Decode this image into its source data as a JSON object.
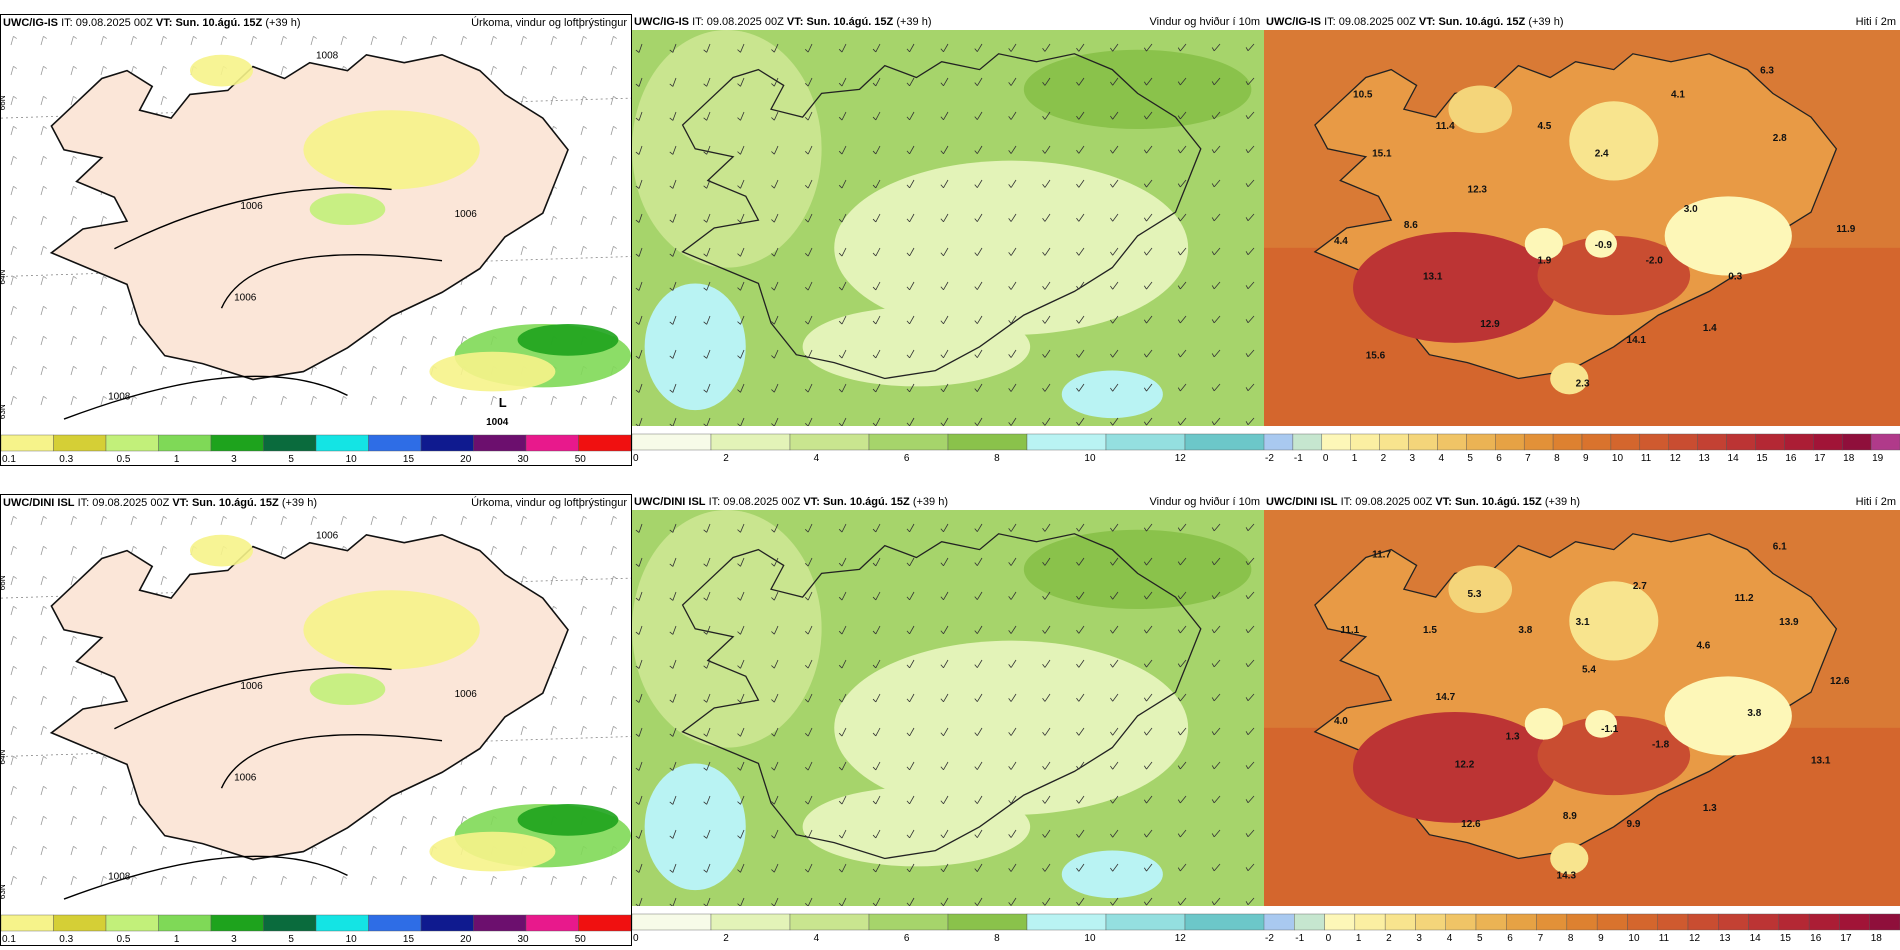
{
  "header": {
    "it_prefix": "IT:",
    "it_value": "09.08.2025 00Z",
    "vt_prefix": "VT:",
    "vt_value": "Sun. 10.ágú. 15Z",
    "lead": "(+39 h)"
  },
  "rows": [
    {
      "model": "UWC/IG-IS",
      "precip": {
        "title": "Úrkoma, vindur og loftþrýstingur",
        "isobar_labels": [
          "1008",
          "1006",
          "1006",
          "1006",
          "1008"
        ],
        "low_letter": "L",
        "low_value": "1004"
      },
      "wind": {
        "title": "Vindur og hviður í 10m"
      },
      "temp": {
        "title": "Hiti í 2m",
        "values": [
          "10.5",
          "11.4",
          "4.5",
          "4.1",
          "6.3",
          "2.8",
          "15.1",
          "12.3",
          "2.4",
          "3.0",
          "8.6",
          "4.4",
          "1.9",
          "-0.9",
          "-2.0",
          "0.3",
          "11.9",
          "13.1",
          "12.9",
          "1.4",
          "14.1",
          "15.6",
          "2.3"
        ]
      }
    },
    {
      "model": "UWC/DINI ISL",
      "precip": {
        "title": "Úrkoma, vindur og loftþrýstingur",
        "isobar_labels": [
          "1006",
          "1006",
          "1006",
          "1006",
          "1008"
        ],
        "low_letter": "",
        "low_value": ""
      },
      "wind": {
        "title": "Vindur og hviður í 10m"
      },
      "temp": {
        "title": "Hiti í 2m",
        "values": [
          "11.7",
          "6.1",
          "5.3",
          "2.7",
          "11.2",
          "13.9",
          "11.1",
          "1.5",
          "3.8",
          "3.1",
          "4.6",
          "5.4",
          "14.7",
          "12.6",
          "4.0",
          "1.3",
          "-1.1",
          "-1.8",
          "3.8",
          "12.2",
          "13.1",
          "8.9",
          "9.9",
          "1.3",
          "12.6",
          "14.3"
        ]
      }
    }
  ],
  "axis_labels": {
    "lat_66": "66N",
    "lat_64": "64N",
    "lat_63": "63N"
  },
  "colorbars": {
    "precip": {
      "labels": [
        "0.1",
        "0.3",
        "0.5",
        "1",
        "3",
        "5",
        "10",
        "15",
        "20",
        "30",
        "50"
      ],
      "colors": [
        "#f6f38a",
        "#d5cf36",
        "#c2f07a",
        "#7fd957",
        "#1ea31d",
        "#0a6b3d",
        "#14e4e4",
        "#2e6de6",
        "#0f1a8f",
        "#6c0f6e",
        "#e8198c",
        "#f01010"
      ]
    },
    "wind": {
      "labels": [
        "0",
        "2",
        "4",
        "6",
        "8",
        "10",
        "12"
      ],
      "colors": [
        "#f7fbe8",
        "#e3f3b8",
        "#c9e58f",
        "#a6d46b",
        "#8ac24b",
        "#b9f3f3",
        "#94dfe0",
        "#6cc7c9"
      ]
    },
    "temp_top": {
      "labels": [
        "-2",
        "-1",
        "0",
        "1",
        "2",
        "3",
        "4",
        "5",
        "6",
        "7",
        "8",
        "9",
        "10",
        "11",
        "12",
        "13",
        "14",
        "15",
        "16",
        "17",
        "18",
        "19"
      ],
      "colors": [
        "#a9c9f0",
        "#c6e6cf",
        "#fdf7b8",
        "#fbefa2",
        "#f8e48e",
        "#f4d57a",
        "#f0c466",
        "#ebb354",
        "#e6a244",
        "#e29138",
        "#dd8130",
        "#d9732d",
        "#d4662d",
        "#cf5a2f",
        "#c94d31",
        "#c34133",
        "#bc3434",
        "#b42834",
        "#ab1d35",
        "#a11437",
        "#8f0f3b",
        "#b03a8a"
      ]
    },
    "temp_bottom": {
      "labels": [
        "-2",
        "-1",
        "0",
        "1",
        "2",
        "3",
        "4",
        "5",
        "6",
        "7",
        "8",
        "9",
        "10",
        "11",
        "12",
        "13",
        "14",
        "15",
        "16",
        "17",
        "18"
      ],
      "colors": [
        "#a9c9f0",
        "#c6e6cf",
        "#fdf7b8",
        "#fbefa2",
        "#f8e48e",
        "#f4d57a",
        "#f0c466",
        "#ebb354",
        "#e6a244",
        "#e29138",
        "#dd8130",
        "#d9732d",
        "#d4662d",
        "#cf5a2f",
        "#c94d31",
        "#c34133",
        "#bc3434",
        "#b42834",
        "#ab1d35",
        "#a11437",
        "#8f0f3b"
      ]
    }
  }
}
